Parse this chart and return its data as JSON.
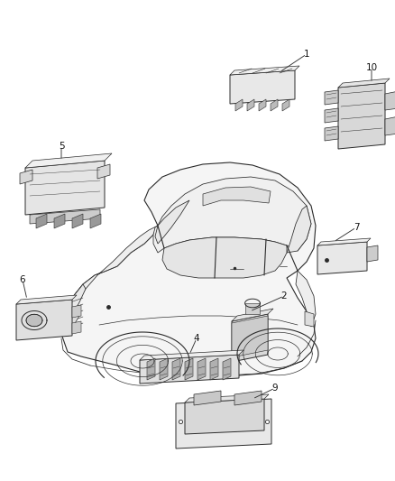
{
  "background_color": "#ffffff",
  "fig_width": 4.38,
  "fig_height": 5.33,
  "dpi": 100,
  "line_color": "#2a2a2a",
  "part_fill": "#eeeeee",
  "part_edge": "#2a2a2a",
  "label_color": "#111111",
  "lw_car": 0.8,
  "lw_part": 0.7,
  "label_fontsize": 7.5
}
